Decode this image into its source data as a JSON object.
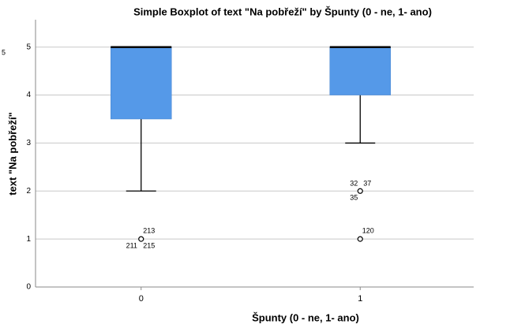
{
  "chart_data": {
    "type": "box",
    "title": "Simple Boxplot of text \"Na pobřeží\" by Špunty (0 - ne, 1- ano)",
    "x_label": "Špunty (0 - ne, 1- ano)",
    "y_label": "text \"Na pobřeží\"",
    "corner_label": "5",
    "categories": [
      "0",
      "1"
    ],
    "color": "#5599e8",
    "ylim": [
      0,
      5.57
    ],
    "yticks": [
      0,
      1,
      2,
      3,
      4,
      5
    ],
    "grid": true,
    "boxes": [
      {
        "low": 2,
        "q1": 3.5,
        "median": 5,
        "q3": 5,
        "high": 5,
        "outliers": [
          {
            "value": 1,
            "labels": [
              "213",
              "211",
              "215"
            ]
          }
        ]
      },
      {
        "low": 3,
        "q1": 4,
        "median": 5,
        "q3": 5,
        "high": 5,
        "outliers": [
          {
            "value": 2,
            "labels": [
              "32",
              "37",
              "35"
            ]
          },
          {
            "value": 1,
            "labels": [
              "120"
            ]
          }
        ]
      }
    ]
  }
}
